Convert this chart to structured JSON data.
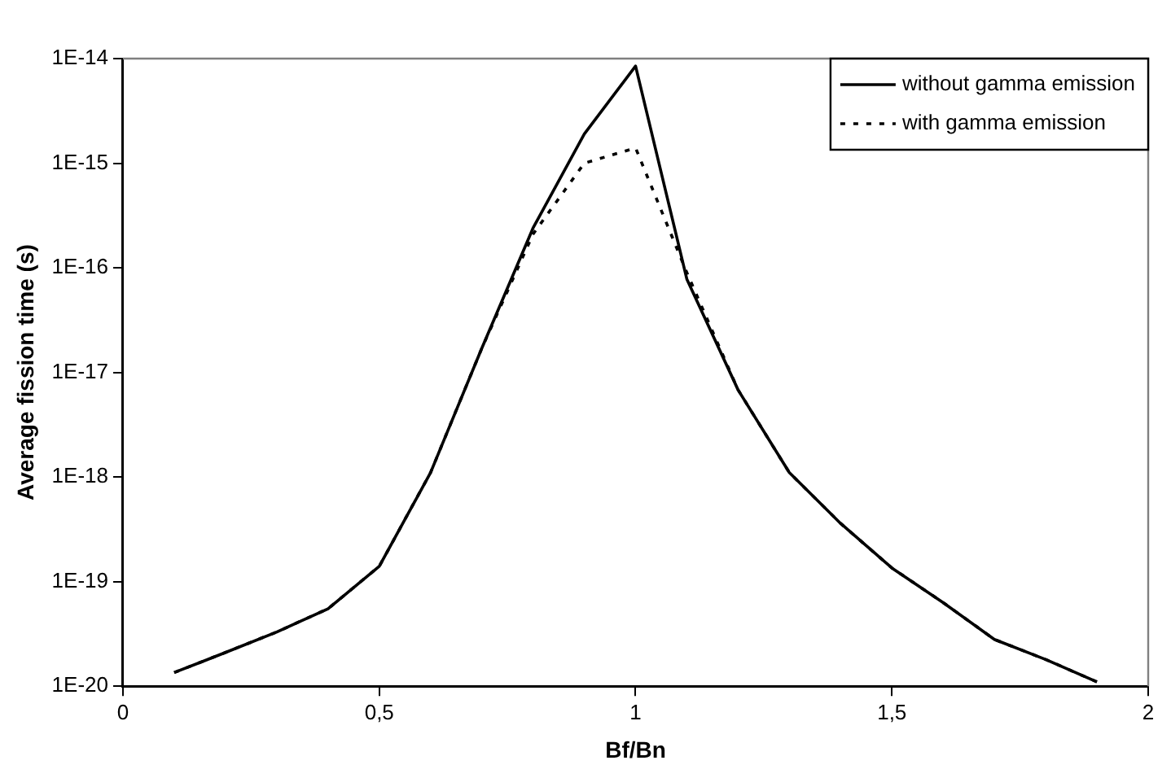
{
  "chart_data": {
    "type": "line",
    "xlabel": "Bf/Bn",
    "ylabel": "Average fission time (s)",
    "log": "y",
    "grid": false,
    "legend": "top right",
    "marker": "none",
    "x": [
      0.1,
      0.2,
      0.3,
      0.4,
      0.5,
      0.6,
      0.7,
      0.8,
      0.9,
      1.0,
      1.1,
      1.2,
      1.3,
      1.4,
      1.5,
      1.6,
      1.7,
      1.8,
      1.9
    ],
    "xlim": [
      0,
      2
    ],
    "xticks": [
      0,
      {
        "value": 0.5,
        "label": "0,5"
      },
      1,
      {
        "value": 1.5,
        "label": "1,5"
      },
      2
    ],
    "ylim": [
      1e-20,
      1e-14
    ],
    "yticks": [
      {
        "value": 1e-20,
        "label": "1E-20"
      },
      {
        "value": 1e-19,
        "label": "1E-19"
      },
      {
        "value": 1e-18,
        "label": "1E-18"
      },
      {
        "value": 1e-17,
        "label": "1E-17"
      },
      {
        "value": 1e-16,
        "label": "1E-16"
      },
      {
        "value": 1e-15,
        "label": "1E-15"
      },
      {
        "value": 1e-14,
        "label": "1E-14"
      }
    ],
    "series": [
      {
        "name": "without gamma emission",
        "color": "#000000",
        "line_style": "solid",
        "values": [
          1.35e-20,
          2.1e-20,
          3.3e-20,
          5.5e-20,
          1.4e-19,
          1.1e-18,
          1.7e-17,
          2.4e-16,
          1.9e-15,
          8.5e-15,
          7.8e-17,
          6.8e-18,
          1.1e-18,
          3.6e-19,
          1.35e-19,
          6.3e-20,
          2.8e-20,
          1.8e-20,
          1.1e-20
        ]
      },
      {
        "name": "with gamma emission",
        "color": "#000000",
        "line_style": "dotted",
        "values": [
          1.35e-20,
          2.1e-20,
          3.3e-20,
          5.5e-20,
          1.4e-19,
          1.1e-18,
          1.7e-17,
          2.1e-16,
          1e-15,
          1.4e-15,
          9e-17,
          6.8e-18,
          1.1e-18,
          3.6e-19,
          1.35e-19,
          6.3e-20,
          2.8e-20,
          1.8e-20,
          1.1e-20
        ]
      }
    ]
  }
}
